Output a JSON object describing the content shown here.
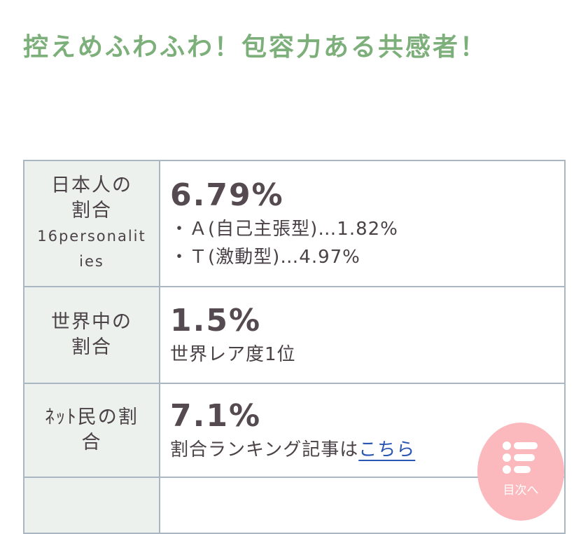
{
  "heading": "控えめふわふわ！包容力ある共感者！",
  "rows": [
    {
      "label": "日本人の割合",
      "label_sub": "16personalities",
      "value": "6.79%",
      "details": [
        "・Ａ(自己主張型)…1.82%",
        "・Ｔ(激動型)…4.97%"
      ]
    },
    {
      "label": "世界中の割合",
      "value": "1.5%",
      "details": [
        "世界レア度1位"
      ]
    },
    {
      "label": "ﾈｯﾄ民の割合",
      "value": "7.1%",
      "detail_text": "割合ランキング記事は",
      "link": "こちら"
    }
  ],
  "toc_button": {
    "label": "目次へ",
    "icon": "list-icon",
    "color": "#fbb8bd"
  },
  "colors": {
    "heading": "#7daf7b",
    "label_bg": "#edf1ee",
    "border": "#aab6c2",
    "link": "#2a56b3"
  }
}
